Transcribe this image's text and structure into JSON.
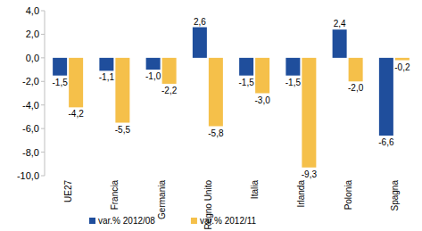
{
  "chart_data": {
    "type": "bar",
    "categories": [
      "UE27",
      "Francia",
      "Germania",
      "Regno Unito",
      "Italia",
      "Irlanda",
      "Polonia",
      "Spagna"
    ],
    "series": [
      {
        "name": "var.% 2012/08",
        "color": "#1f4e9c",
        "values": [
          -1.5,
          -1.1,
          -1.0,
          2.6,
          -1.5,
          -1.5,
          2.4,
          -6.6
        ],
        "value_labels": [
          "-1,5",
          "-1,1",
          "-1,0",
          "2,6",
          "-1,5",
          "-1,5",
          "2,4",
          "-6,6"
        ]
      },
      {
        "name": "var.% 2012/11",
        "color": "#f5c04a",
        "values": [
          -4.2,
          -5.5,
          -2.2,
          -5.8,
          -3.0,
          -9.3,
          -2.0,
          -0.2
        ],
        "value_labels": [
          "-4,2",
          "-5,5",
          "-2,2",
          "-5,8",
          "-3,0",
          "-9,3",
          "-2,0",
          "-0,2"
        ]
      }
    ],
    "ylim": [
      -10,
      4
    ],
    "yticks": [
      {
        "value": 4,
        "label": "4,0"
      },
      {
        "value": 2,
        "label": "2,0"
      },
      {
        "value": 0,
        "label": "0,0"
      },
      {
        "value": -2,
        "label": "-2,0"
      },
      {
        "value": -4,
        "label": "-4,0"
      },
      {
        "value": -6,
        "label": "-6,0"
      },
      {
        "value": -8,
        "label": "-8,0"
      },
      {
        "value": -10,
        "label": "-10,0"
      }
    ],
    "data_labels": true,
    "legend": "bottom"
  }
}
